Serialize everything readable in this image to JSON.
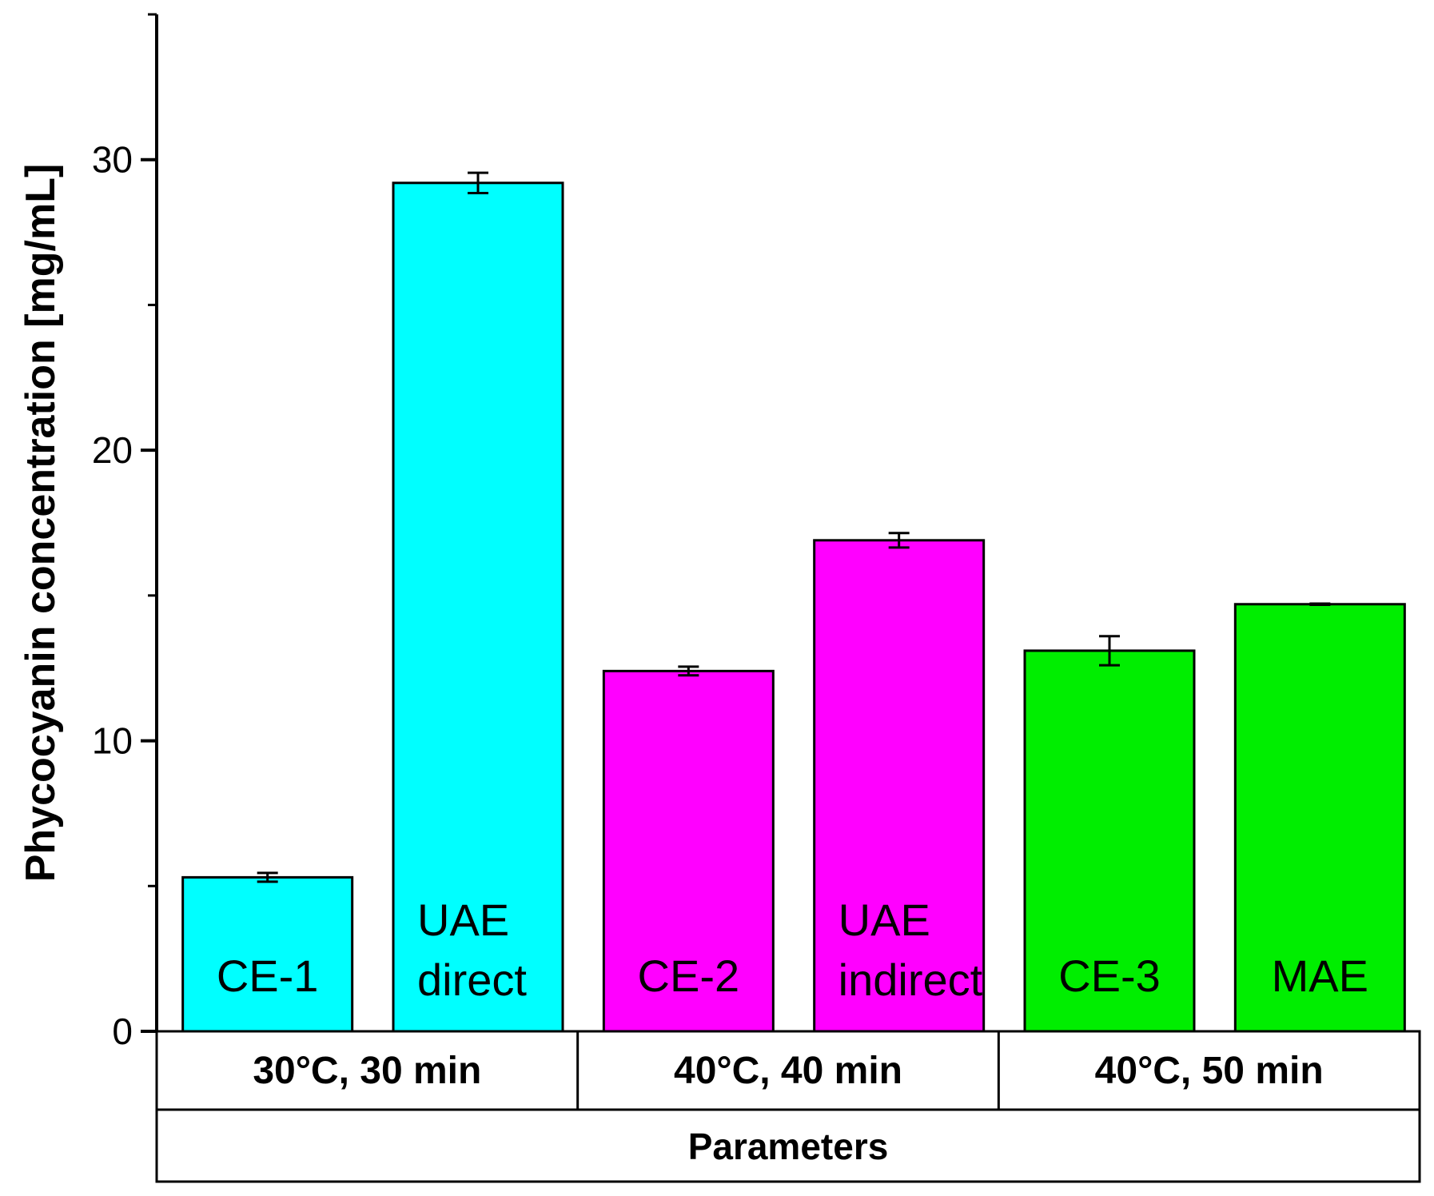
{
  "chart_data": {
    "type": "bar",
    "title": "",
    "ylabel": "Phycocyanin concentration [mg/mL]",
    "xlabel": "Parameters",
    "ylim": [
      0,
      35
    ],
    "yticks": [
      0,
      10,
      20,
      30
    ],
    "bars": [
      {
        "label": [
          "CE-1"
        ],
        "value": 5.3,
        "error": 0.15,
        "color": "#00FFFF",
        "group": 0
      },
      {
        "label": [
          "UAE",
          "direct"
        ],
        "value": 29.2,
        "error": 0.35,
        "color": "#00FFFF",
        "group": 0
      },
      {
        "label": [
          "CE-2"
        ],
        "value": 12.4,
        "error": 0.15,
        "color": "#FF00FF",
        "group": 1
      },
      {
        "label": [
          "UAE",
          "indirect"
        ],
        "value": 16.9,
        "error": 0.25,
        "color": "#FF00FF",
        "group": 1
      },
      {
        "label": [
          "CE-3"
        ],
        "value": 13.1,
        "error": 0.5,
        "color": "#00EE00",
        "group": 2
      },
      {
        "label": [
          "MAE"
        ],
        "value": 14.7,
        "error": 0.02,
        "color": "#00EE00",
        "group": 2
      }
    ],
    "groups": [
      {
        "label": "30°C, 30 min"
      },
      {
        "label": "40°C, 40 min"
      },
      {
        "label": "40°C, 50 min"
      }
    ],
    "grid": false,
    "legend": "none"
  }
}
